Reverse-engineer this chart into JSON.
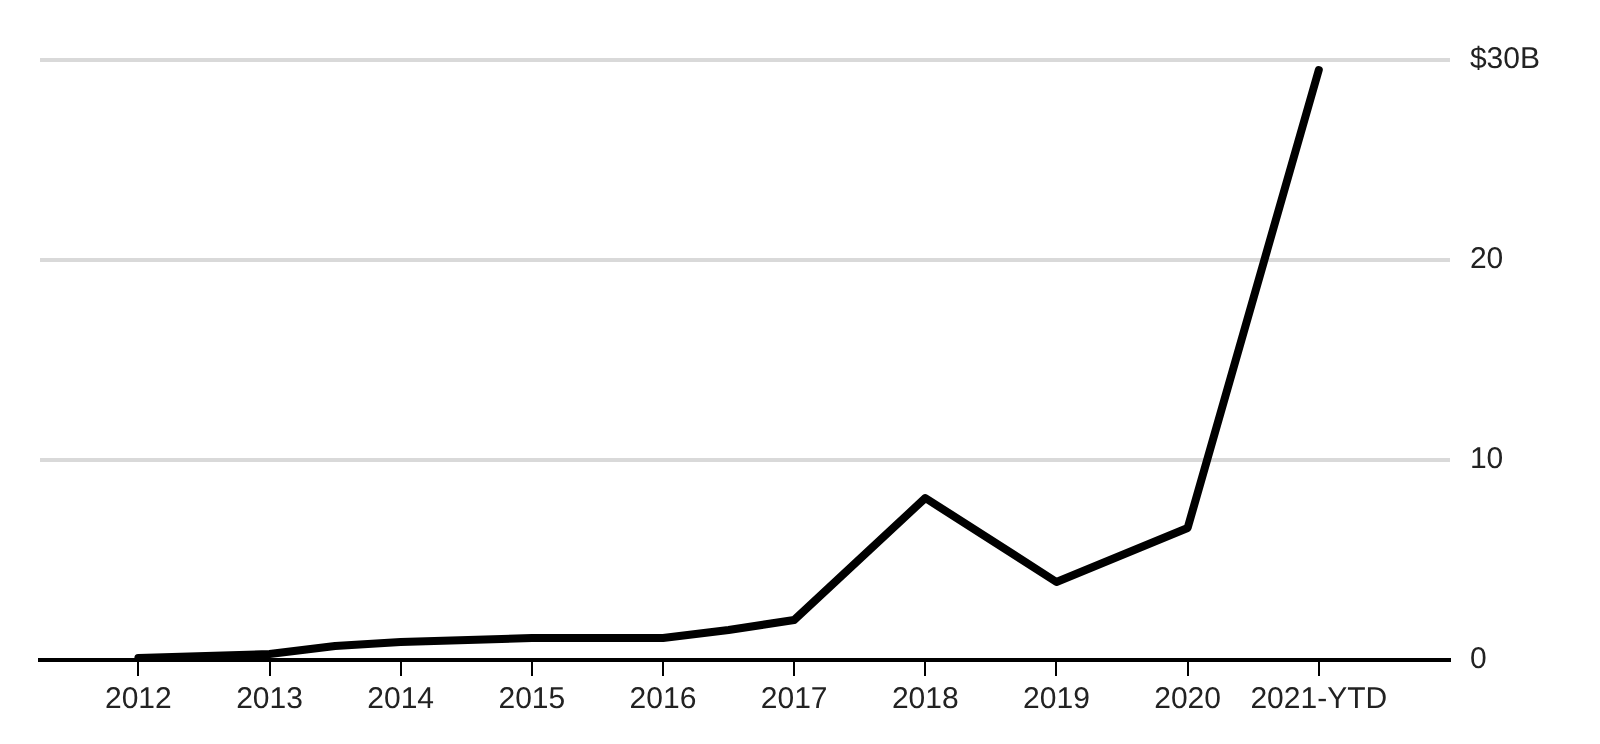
{
  "chart_data": {
    "type": "line",
    "x": [
      2012,
      2013,
      2013.5,
      2014,
      2015,
      2016,
      2016.5,
      2017,
      2018,
      2019,
      2020,
      2021
    ],
    "series": [
      {
        "color": "#000000",
        "values": [
          0.1,
          0.3,
          0.7,
          0.9,
          1.1,
          1.1,
          1.5,
          2.0,
          8.1,
          3.9,
          6.6,
          29.5
        ]
      }
    ],
    "xlim": [
      2011.25,
      2022
    ],
    "xticks": [
      2012,
      2013,
      2014,
      2015,
      2016,
      2017,
      2018,
      2019,
      2020,
      {
        "value": 2021,
        "label": "2021-YTD"
      }
    ],
    "ylim": [
      0,
      30
    ],
    "yticks": [
      0,
      10,
      20,
      {
        "value": 30,
        "label": "$30B"
      }
    ],
    "grid": "y",
    "marker": "none",
    "line_style": "solid",
    "legend": false
  }
}
